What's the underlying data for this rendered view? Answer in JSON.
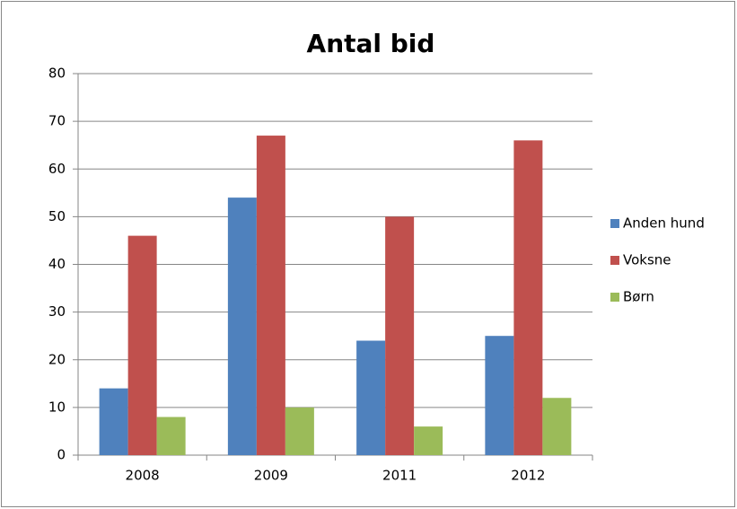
{
  "chart_data": {
    "type": "bar",
    "title": "Antal bid",
    "categories": [
      "2008",
      "2009",
      "2011",
      "2012"
    ],
    "series": [
      {
        "name": "Anden hund",
        "color": "#4f81bd",
        "values": [
          14,
          54,
          24,
          25
        ]
      },
      {
        "name": "Voksne",
        "color": "#c0504d",
        "values": [
          46,
          67,
          50,
          66
        ]
      },
      {
        "name": "Børn",
        "color": "#9bbb59",
        "values": [
          8,
          10,
          6,
          12
        ]
      }
    ],
    "ylim": [
      0,
      80
    ],
    "yticks": [
      0,
      10,
      20,
      30,
      40,
      50,
      60,
      70,
      80
    ],
    "grid": true,
    "legend": "right"
  }
}
